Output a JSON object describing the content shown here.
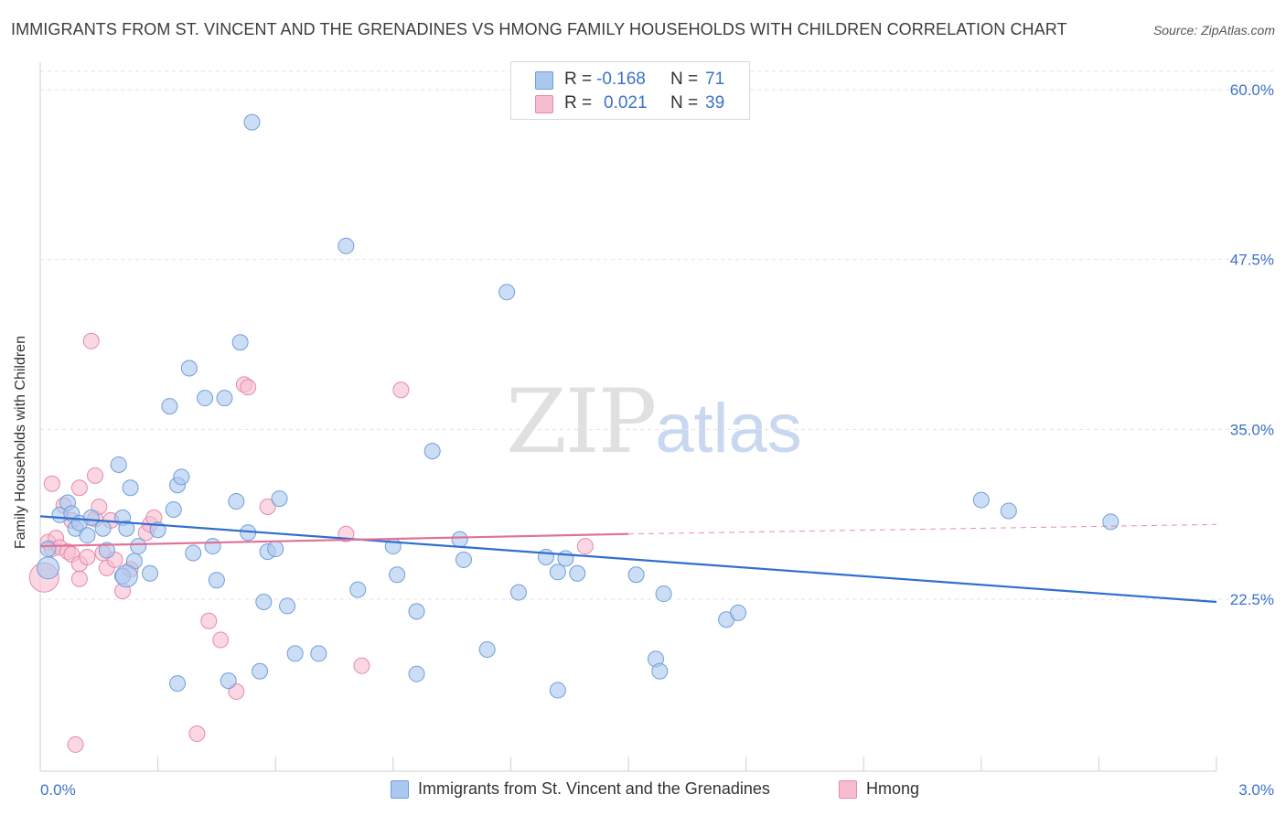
{
  "title": "IMMIGRANTS FROM ST. VINCENT AND THE GRENADINES VS HMONG FAMILY HOUSEHOLDS WITH CHILDREN CORRELATION CHART",
  "source": "Source: ZipAtlas.com",
  "watermark": {
    "zip": "ZIP",
    "atlas": "atlas"
  },
  "legend": {
    "rows": [
      {
        "r_label": "R =",
        "r_value": "-0.168",
        "n_label": "N =",
        "n_value": "71",
        "color": "#aac8f0"
      },
      {
        "r_label": "R =",
        "r_value": "0.021",
        "n_label": "N =",
        "n_value": "39",
        "color": "#f7b8cc"
      }
    ]
  },
  "bottom_legend": [
    {
      "label": "Immigrants from St. Vincent and the Grenadines",
      "color": "#aac8f0"
    },
    {
      "label": "Hmong",
      "color": "#f7b8cc"
    }
  ],
  "colors": {
    "blue_fill": "#aac8f0",
    "blue_stroke": "#6f9ed8",
    "blue_line": "#2f6fce",
    "pink_fill": "#f7bcd0",
    "pink_stroke": "#e58aa9",
    "pink_line": "#e0719a",
    "tick_label": "#3b73c8",
    "grid": "#e3e3e3"
  },
  "chart_data": {
    "type": "scatter",
    "title": "IMMIGRANTS FROM ST. VINCENT AND THE GRENADINES VS HMONG FAMILY HOUSEHOLDS WITH CHILDREN CORRELATION CHART",
    "xlabel": "",
    "ylabel": "Family Households with Children",
    "xlim": [
      0.0,
      3.0
    ],
    "ylim": [
      10.0,
      62.0
    ],
    "x_tick_labels": [
      "0.0%",
      "3.0%"
    ],
    "y_ticks": [
      22.5,
      35.0,
      47.5,
      60.0
    ],
    "y_tick_labels": [
      "22.5%",
      "35.0%",
      "47.5%",
      "60.0%"
    ],
    "grid": true,
    "legend_position": "top-center",
    "series": [
      {
        "name": "Immigrants from St. Vincent and the Grenadines",
        "trend": {
          "x": [
            0.0,
            3.0
          ],
          "y": [
            28.6,
            22.3
          ]
        },
        "points": [
          [
            0.02,
            26.2
          ],
          [
            0.02,
            24.8
          ],
          [
            0.05,
            28.7
          ],
          [
            0.07,
            29.6
          ],
          [
            0.08,
            28.8
          ],
          [
            0.09,
            27.7
          ],
          [
            0.1,
            28.1
          ],
          [
            0.12,
            27.2
          ],
          [
            0.13,
            28.5
          ],
          [
            0.16,
            27.7
          ],
          [
            0.17,
            26.1
          ],
          [
            0.2,
            32.4
          ],
          [
            0.21,
            28.5
          ],
          [
            0.21,
            24.2
          ],
          [
            0.22,
            27.7
          ],
          [
            0.23,
            30.7
          ],
          [
            0.24,
            25.3
          ],
          [
            0.25,
            26.4
          ],
          [
            0.28,
            24.4
          ],
          [
            0.3,
            27.6
          ],
          [
            0.33,
            36.7
          ],
          [
            0.34,
            29.1
          ],
          [
            0.35,
            30.9
          ],
          [
            0.35,
            16.3
          ],
          [
            0.36,
            31.5
          ],
          [
            0.38,
            39.5
          ],
          [
            0.39,
            25.9
          ],
          [
            0.42,
            37.3
          ],
          [
            0.44,
            26.4
          ],
          [
            0.45,
            23.9
          ],
          [
            0.47,
            37.3
          ],
          [
            0.48,
            16.5
          ],
          [
            0.5,
            29.7
          ],
          [
            0.51,
            41.4
          ],
          [
            0.53,
            27.4
          ],
          [
            0.54,
            57.6
          ],
          [
            0.56,
            17.2
          ],
          [
            0.57,
            22.3
          ],
          [
            0.58,
            26.0
          ],
          [
            0.6,
            26.2
          ],
          [
            0.61,
            29.9
          ],
          [
            0.63,
            22.0
          ],
          [
            0.65,
            18.5
          ],
          [
            0.71,
            18.5
          ],
          [
            0.78,
            48.5
          ],
          [
            0.81,
            23.2
          ],
          [
            0.9,
            26.4
          ],
          [
            0.91,
            24.3
          ],
          [
            0.96,
            17.0
          ],
          [
            0.96,
            21.6
          ],
          [
            1.0,
            33.4
          ],
          [
            1.07,
            26.9
          ],
          [
            1.08,
            25.4
          ],
          [
            1.14,
            18.8
          ],
          [
            1.19,
            45.1
          ],
          [
            1.22,
            23.0
          ],
          [
            1.29,
            25.6
          ],
          [
            1.32,
            15.8
          ],
          [
            1.32,
            24.5
          ],
          [
            1.34,
            25.5
          ],
          [
            1.37,
            24.4
          ],
          [
            1.52,
            24.3
          ],
          [
            1.57,
            18.1
          ],
          [
            1.58,
            17.2
          ],
          [
            1.59,
            22.9
          ],
          [
            1.75,
            21.0
          ],
          [
            1.78,
            21.5
          ],
          [
            2.4,
            29.8
          ],
          [
            2.47,
            29.0
          ],
          [
            2.73,
            28.2
          ],
          [
            0.22,
            24.2
          ]
        ]
      },
      {
        "name": "Hmong",
        "trend": {
          "x": [
            0.0,
            1.5
          ],
          "y": [
            26.4,
            27.3
          ]
        },
        "trend_dashed": {
          "x": [
            1.5,
            3.0
          ],
          "y": [
            27.3,
            28.0
          ]
        },
        "points": [
          [
            0.01,
            24.1
          ],
          [
            0.02,
            26.7
          ],
          [
            0.03,
            26.2
          ],
          [
            0.03,
            31.0
          ],
          [
            0.04,
            27.0
          ],
          [
            0.05,
            26.3
          ],
          [
            0.06,
            29.4
          ],
          [
            0.07,
            26.0
          ],
          [
            0.08,
            28.3
          ],
          [
            0.08,
            25.8
          ],
          [
            0.09,
            11.8
          ],
          [
            0.1,
            25.1
          ],
          [
            0.1,
            30.7
          ],
          [
            0.1,
            24.0
          ],
          [
            0.12,
            25.6
          ],
          [
            0.13,
            41.5
          ],
          [
            0.14,
            31.6
          ],
          [
            0.14,
            28.4
          ],
          [
            0.15,
            29.3
          ],
          [
            0.16,
            25.9
          ],
          [
            0.17,
            24.8
          ],
          [
            0.18,
            28.3
          ],
          [
            0.19,
            25.4
          ],
          [
            0.21,
            23.1
          ],
          [
            0.23,
            24.7
          ],
          [
            0.27,
            27.4
          ],
          [
            0.28,
            28.0
          ],
          [
            0.29,
            28.5
          ],
          [
            0.4,
            12.6
          ],
          [
            0.43,
            20.9
          ],
          [
            0.46,
            19.5
          ],
          [
            0.5,
            15.7
          ],
          [
            0.52,
            38.3
          ],
          [
            0.53,
            38.1
          ],
          [
            0.58,
            29.3
          ],
          [
            0.78,
            27.3
          ],
          [
            0.82,
            17.6
          ],
          [
            0.92,
            37.9
          ],
          [
            1.39,
            26.4
          ]
        ]
      }
    ]
  }
}
